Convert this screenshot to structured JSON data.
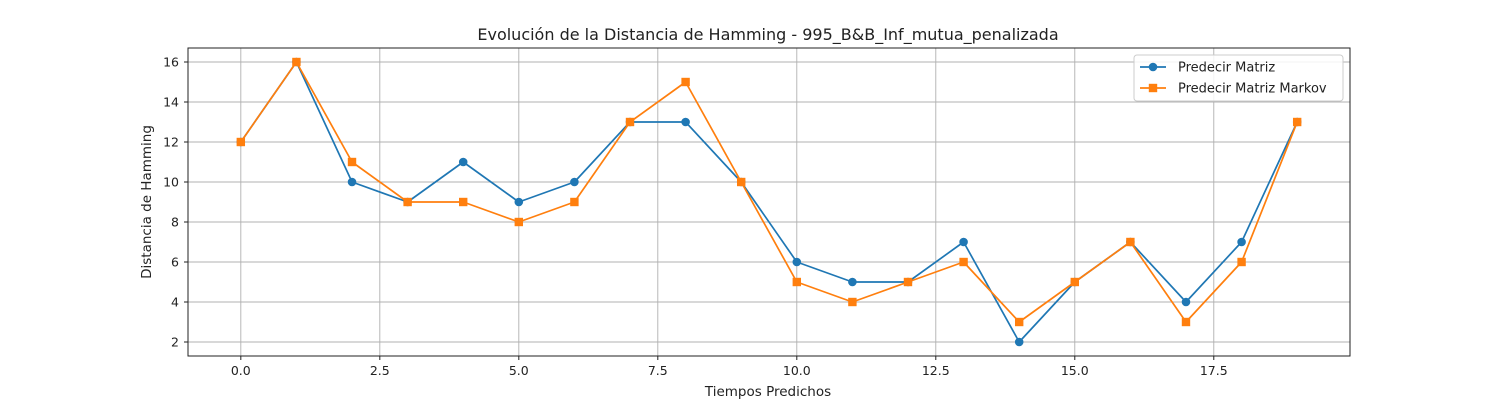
{
  "chart_data": {
    "type": "line",
    "title": "Evolución de la Distancia de Hamming - 995_B&B_Inf_mutua_penalizada",
    "xlabel": "Tiempos Predichos",
    "ylabel": "Distancia de Hamming",
    "x": [
      0,
      1,
      2,
      3,
      4,
      5,
      6,
      7,
      8,
      9,
      10,
      11,
      12,
      13,
      14,
      15,
      16,
      17,
      18,
      19
    ],
    "xlim": [
      -0.95,
      19.95
    ],
    "ylim": [
      1.3,
      16.7
    ],
    "xticks": [
      0.0,
      2.5,
      5.0,
      7.5,
      10.0,
      12.5,
      15.0,
      17.5
    ],
    "xtick_labels": [
      "0.0",
      "2.5",
      "5.0",
      "7.5",
      "10.0",
      "12.5",
      "15.0",
      "17.5"
    ],
    "yticks": [
      2,
      4,
      6,
      8,
      10,
      12,
      14,
      16
    ],
    "ytick_labels": [
      "2",
      "4",
      "6",
      "8",
      "10",
      "12",
      "14",
      "16"
    ],
    "grid": true,
    "legend_position": "top-right",
    "series": [
      {
        "name": "Predecir Matriz",
        "color": "#1f77b4",
        "marker": "circle",
        "values": [
          12,
          16,
          10,
          9,
          11,
          9,
          10,
          13,
          13,
          10,
          6,
          5,
          5,
          7,
          2,
          5,
          7,
          4,
          7,
          13
        ]
      },
      {
        "name": "Predecir Matriz Markov",
        "color": "#ff7f0e",
        "marker": "square",
        "values": [
          12,
          16,
          11,
          9,
          9,
          8,
          9,
          13,
          15,
          10,
          5,
          4,
          5,
          6,
          3,
          5,
          7,
          3,
          6,
          13
        ]
      }
    ]
  }
}
